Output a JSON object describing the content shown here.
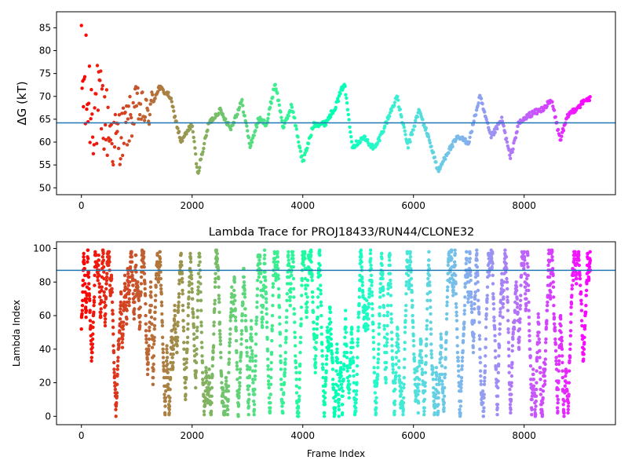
{
  "chart_data": [
    {
      "type": "scatter",
      "title": "",
      "xlabel": "",
      "ylabel": "ΔG (kT)",
      "xlim": [
        -450,
        9650
      ],
      "ylim": [
        48.5,
        88.5
      ],
      "xticks": [
        0,
        2000,
        4000,
        6000,
        8000
      ],
      "xtick_labels": [
        "0",
        "2000",
        "4000",
        "6000",
        "8000"
      ],
      "yticks": [
        50,
        55,
        60,
        65,
        70,
        75,
        80,
        85
      ],
      "ytick_labels": [
        "50",
        "55",
        "60",
        "65",
        "70",
        "75",
        "80",
        "85"
      ],
      "hline": 64.2,
      "hline_color": "#1f77b4",
      "colormap": "rainbow (red at frame 0 → violet at last frame)",
      "grid": false,
      "legend": "none",
      "n_frames": 9200,
      "trace_anchors": [
        [
          0,
          72
        ],
        [
          200,
          68
        ],
        [
          400,
          66
        ],
        [
          600,
          60
        ],
        [
          800,
          63
        ],
        [
          1000,
          68
        ],
        [
          1200,
          66
        ],
        [
          1400,
          72
        ],
        [
          1600,
          70
        ],
        [
          1800,
          60
        ],
        [
          2000,
          64
        ],
        [
          2100,
          53
        ],
        [
          2300,
          64
        ],
        [
          2500,
          67
        ],
        [
          2700,
          63
        ],
        [
          2900,
          69
        ],
        [
          3050,
          59
        ],
        [
          3200,
          65
        ],
        [
          3350,
          64
        ],
        [
          3500,
          73
        ],
        [
          3650,
          63
        ],
        [
          3800,
          68
        ],
        [
          4000,
          55.5
        ],
        [
          4200,
          64
        ],
        [
          4400,
          64
        ],
        [
          4600,
          68
        ],
        [
          4750,
          73
        ],
        [
          4900,
          59
        ],
        [
          5100,
          61
        ],
        [
          5300,
          58.5
        ],
        [
          5500,
          64
        ],
        [
          5700,
          70
        ],
        [
          5900,
          59
        ],
        [
          6100,
          67
        ],
        [
          6300,
          60
        ],
        [
          6450,
          53.5
        ],
        [
          6600,
          57.5
        ],
        [
          6800,
          61
        ],
        [
          7000,
          60
        ],
        [
          7200,
          70
        ],
        [
          7400,
          61
        ],
        [
          7600,
          65
        ],
        [
          7750,
          56.5
        ],
        [
          7900,
          64
        ],
        [
          8100,
          66
        ],
        [
          8300,
          67
        ],
        [
          8500,
          69
        ],
        [
          8650,
          60.5
        ],
        [
          8800,
          66
        ],
        [
          9000,
          68
        ],
        [
          9150,
          69.5
        ]
      ]
    },
    {
      "type": "scatter",
      "title": "Lambda Trace for PROJ18433/RUN44/CLONE32",
      "xlabel": "Frame Index",
      "ylabel": "Lambda Index",
      "xlim": [
        -450,
        9650
      ],
      "ylim": [
        -5,
        104
      ],
      "xticks": [
        0,
        2000,
        4000,
        6000,
        8000
      ],
      "xtick_labels": [
        "0",
        "2000",
        "4000",
        "6000",
        "8000"
      ],
      "yticks": [
        0,
        20,
        40,
        60,
        80,
        100
      ],
      "ytick_labels": [
        "0",
        "20",
        "40",
        "60",
        "80",
        "100"
      ],
      "hline": 87,
      "hline_color": "#1f77b4",
      "colormap": "rainbow (red at frame 0 → violet at last frame)",
      "grid": false,
      "legend": "none",
      "n_frames": 9200,
      "lambda_range": [
        0,
        99
      ],
      "trace_description": "lambda index random-walks between 0 and 99 across frames, sweeping the full range repeatedly"
    }
  ]
}
